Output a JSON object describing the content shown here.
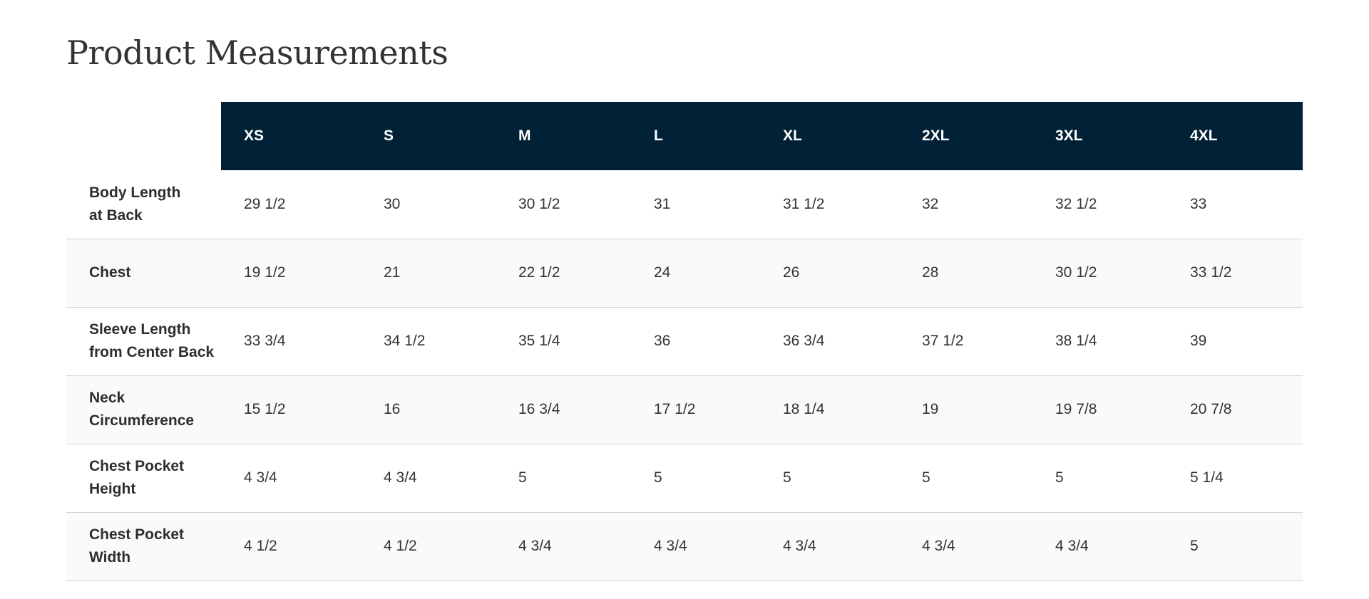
{
  "page": {
    "title": "Product Measurements"
  },
  "table": {
    "header_background": "#012236",
    "sizes": [
      "XS",
      "S",
      "M",
      "L",
      "XL",
      "2XL",
      "3XL",
      "4XL"
    ],
    "rows": [
      {
        "label": "Body Length at Back",
        "values": [
          "29 1/2",
          "30",
          "30 1/2",
          "31",
          "31 1/2",
          "32",
          "32 1/2",
          "33"
        ]
      },
      {
        "label": "Chest",
        "values": [
          "19 1/2",
          "21",
          "22 1/2",
          "24",
          "26",
          "28",
          "30 1/2",
          "33 1/2"
        ]
      },
      {
        "label": "Sleeve Length from Center Back",
        "values": [
          "33 3/4",
          "34 1/2",
          "35 1/4",
          "36",
          "36 3/4",
          "37 1/2",
          "38 1/4",
          "39"
        ]
      },
      {
        "label": "Neck Circumference",
        "values": [
          "15 1/2",
          "16",
          "16 3/4",
          "17 1/2",
          "18 1/4",
          "19",
          "19 7/8",
          "20 7/8"
        ]
      },
      {
        "label": "Chest Pocket Height",
        "values": [
          "4 3/4",
          "4 3/4",
          "5",
          "5",
          "5",
          "5",
          "5",
          "5 1/4"
        ]
      },
      {
        "label": "Chest Pocket Width",
        "values": [
          "4 1/2",
          "4 1/2",
          "4 3/4",
          "4 3/4",
          "4 3/4",
          "4 3/4",
          "4 3/4",
          "5"
        ]
      }
    ]
  }
}
